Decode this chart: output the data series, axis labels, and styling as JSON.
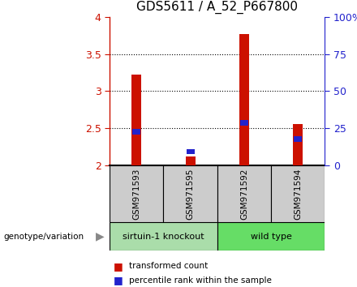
{
  "title": "GDS5611 / A_52_P667800",
  "samples": [
    "GSM971593",
    "GSM971595",
    "GSM971592",
    "GSM971594"
  ],
  "group_labels": [
    "sirtuin-1 knockout",
    "wild type"
  ],
  "red_values": [
    3.22,
    2.12,
    3.77,
    2.55
  ],
  "blue_values": [
    2.45,
    2.18,
    2.57,
    2.35
  ],
  "ylim": [
    2.0,
    4.0
  ],
  "yticks_left": [
    2.0,
    2.5,
    3.0,
    3.5,
    4.0
  ],
  "yticks_right": [
    0,
    25,
    50,
    75,
    100
  ],
  "bar_color": "#CC1100",
  "blue_color": "#2222CC",
  "group_box_color_1": "#AADDAA",
  "group_box_color_2": "#66DD66",
  "sample_box_color": "#CCCCCC",
  "legend_red": "transformed count",
  "legend_blue": "percentile rank within the sample",
  "ylabel_left_color": "#CC1100",
  "ylabel_right_color": "#2222CC",
  "title_fontsize": 11,
  "tick_fontsize": 9,
  "bar_width": 0.18
}
